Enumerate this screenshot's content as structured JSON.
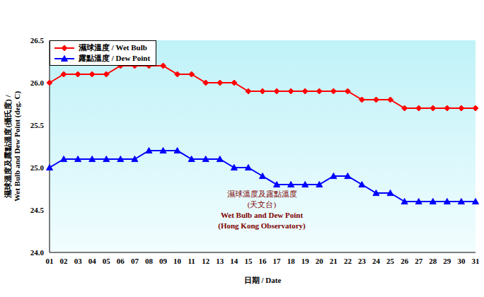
{
  "chart_data": {
    "type": "line",
    "y_label": [
      "濕球溫度及露點溫度(攝氏度) /",
      "Wet Bulb and Dew Point (deg. C)"
    ],
    "x_label": "日期 / Date",
    "annotation": [
      "濕球溫度及露點溫度",
      "(天文台)",
      "Wet Bulb and Dew Point",
      "(Hong Kong Observatory)"
    ],
    "categories": [
      "01",
      "02",
      "03",
      "04",
      "05",
      "06",
      "07",
      "08",
      "09",
      "10",
      "11",
      "12",
      "13",
      "14",
      "15",
      "16",
      "17",
      "18",
      "19",
      "20",
      "21",
      "22",
      "23",
      "24",
      "25",
      "26",
      "27",
      "28",
      "29",
      "30",
      "31"
    ],
    "series": [
      {
        "name": "濕球溫度 / Wet Bulb",
        "color": "#ff0000",
        "marker": "diamond",
        "values": [
          26.0,
          26.1,
          26.1,
          26.1,
          26.1,
          26.2,
          26.2,
          26.2,
          26.2,
          26.1,
          26.1,
          26.0,
          26.0,
          26.0,
          25.9,
          25.9,
          25.9,
          25.9,
          25.9,
          25.9,
          25.9,
          25.9,
          25.8,
          25.8,
          25.8,
          25.7,
          25.7,
          25.7,
          25.7,
          25.7,
          25.7
        ]
      },
      {
        "name": "露點溫度 / Dew Point",
        "color": "#0000ff",
        "marker": "triangle",
        "values": [
          25.0,
          25.1,
          25.1,
          25.1,
          25.1,
          25.1,
          25.1,
          25.2,
          25.2,
          25.2,
          25.1,
          25.1,
          25.1,
          25.0,
          25.0,
          24.9,
          24.8,
          24.8,
          24.8,
          24.8,
          24.9,
          24.9,
          24.8,
          24.7,
          24.7,
          24.6,
          24.6,
          24.6,
          24.6,
          24.6,
          24.6
        ]
      }
    ],
    "ylim": [
      24.0,
      26.5
    ],
    "yticks": [
      {
        "value": 24,
        "label": "24.0"
      },
      24.5,
      {
        "value": 25,
        "label": "25.0"
      },
      25.5,
      {
        "value": 26,
        "label": "26.0"
      },
      26.5
    ],
    "grid": false,
    "legend": "top-left"
  }
}
